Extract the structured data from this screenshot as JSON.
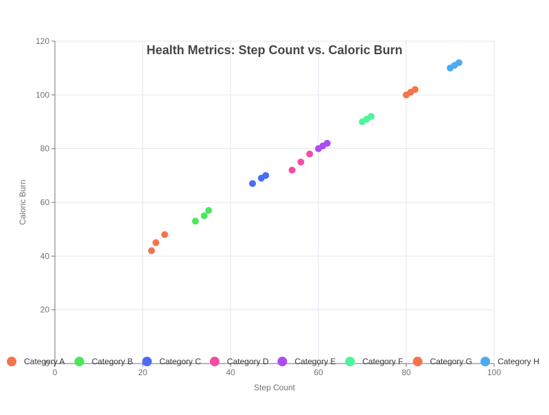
{
  "chart_data": {
    "type": "scatter",
    "title": "Health Metrics: Step Count vs. Caloric Burn",
    "xlabel": "Step Count",
    "ylabel": "Caloric Burn",
    "xlim": [
      0,
      100
    ],
    "ylim": [
      0,
      120
    ],
    "xticks": [
      0,
      20,
      40,
      60,
      80,
      100
    ],
    "yticks": [
      0,
      20,
      40,
      60,
      80,
      100,
      120
    ],
    "grid": true,
    "legend_position": "bottom",
    "series": [
      {
        "name": "Category A",
        "color": "#f4744c",
        "points": [
          [
            22,
            42
          ],
          [
            23,
            45
          ],
          [
            25,
            48
          ]
        ]
      },
      {
        "name": "Category B",
        "color": "#4ce65c",
        "points": [
          [
            32,
            53
          ],
          [
            34,
            55
          ],
          [
            35,
            57
          ]
        ]
      },
      {
        "name": "Category C",
        "color": "#4c6cf4",
        "points": [
          [
            45,
            67
          ],
          [
            47,
            69
          ],
          [
            48,
            70
          ]
        ]
      },
      {
        "name": "Category D",
        "color": "#f44ca4",
        "points": [
          [
            54,
            72
          ],
          [
            56,
            75
          ],
          [
            58,
            78
          ]
        ]
      },
      {
        "name": "Category E",
        "color": "#ac4cf4",
        "points": [
          [
            60,
            80
          ],
          [
            61,
            81
          ],
          [
            62,
            82
          ]
        ]
      },
      {
        "name": "Category F",
        "color": "#4cf49c",
        "points": [
          [
            70,
            90
          ],
          [
            71,
            91
          ],
          [
            72,
            92
          ]
        ]
      },
      {
        "name": "Category G",
        "color": "#f4744c",
        "points": [
          [
            80,
            100
          ],
          [
            81,
            101
          ],
          [
            82,
            102
          ]
        ]
      },
      {
        "name": "Category H",
        "color": "#4caaf4",
        "points": [
          [
            90,
            110
          ],
          [
            91,
            111
          ],
          [
            92,
            112
          ]
        ]
      }
    ]
  }
}
